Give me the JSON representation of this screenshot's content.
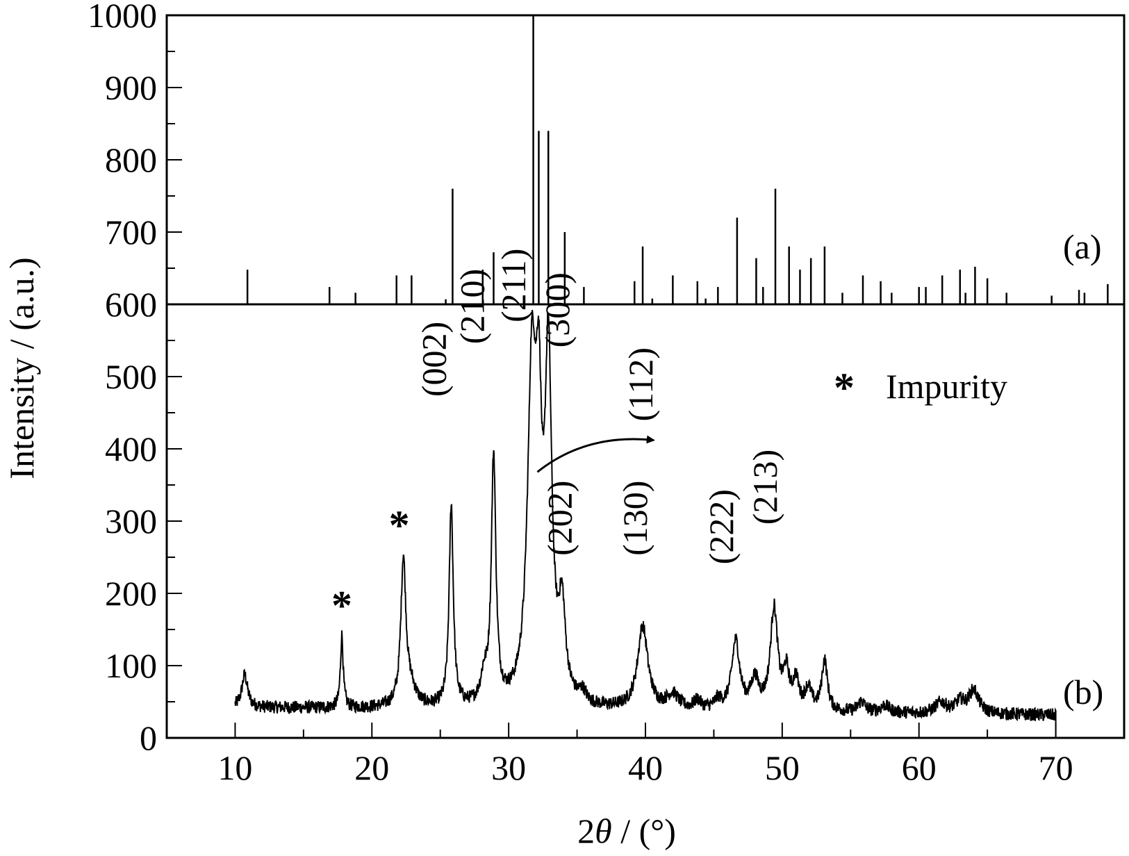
{
  "chart_data": {
    "type": "line",
    "xlabel_prefix": "2",
    "xlabel_theta": "θ",
    "xlabel_suffix": " / (°)",
    "ylabel": "Intensity / (a.u.)",
    "xlim": [
      5,
      75
    ],
    "ylim": [
      0,
      1000
    ],
    "xticks": [
      "10",
      "20",
      "30",
      "40",
      "50",
      "60",
      "70"
    ],
    "yticks": [
      "0",
      "100",
      "200",
      "300",
      "400",
      "500",
      "600",
      "700",
      "800",
      "900",
      "1000"
    ],
    "panel_a_label": "(a)",
    "panel_b_label": "(b)",
    "legend": {
      "marker": "*",
      "text": "Impurity"
    },
    "reference_pattern": {
      "baseline": 600,
      "lines": [
        [
          10.9,
          648
        ],
        [
          16.9,
          624
        ],
        [
          18.8,
          616
        ],
        [
          21.8,
          640
        ],
        [
          22.9,
          640
        ],
        [
          25.4,
          607
        ],
        [
          25.9,
          760
        ],
        [
          28.1,
          648
        ],
        [
          28.9,
          672
        ],
        [
          31.8,
          1000
        ],
        [
          32.2,
          840
        ],
        [
          32.9,
          840
        ],
        [
          34.1,
          700
        ],
        [
          35.5,
          624
        ],
        [
          39.2,
          632
        ],
        [
          39.8,
          680
        ],
        [
          40.5,
          608
        ],
        [
          42.0,
          640
        ],
        [
          43.8,
          632
        ],
        [
          44.4,
          608
        ],
        [
          45.3,
          624
        ],
        [
          46.7,
          720
        ],
        [
          48.1,
          664
        ],
        [
          48.6,
          624
        ],
        [
          49.5,
          760
        ],
        [
          50.5,
          680
        ],
        [
          51.3,
          648
        ],
        [
          52.1,
          664
        ],
        [
          53.1,
          680
        ],
        [
          54.4,
          616
        ],
        [
          55.9,
          640
        ],
        [
          57.2,
          632
        ],
        [
          58.0,
          616
        ],
        [
          60.0,
          624
        ],
        [
          60.5,
          624
        ],
        [
          61.7,
          640
        ],
        [
          63.0,
          648
        ],
        [
          63.4,
          616
        ],
        [
          64.1,
          652
        ],
        [
          65.0,
          636
        ],
        [
          66.4,
          616
        ],
        [
          69.7,
          612
        ],
        [
          71.7,
          620
        ],
        [
          72.1,
          616
        ],
        [
          73.8,
          628
        ]
      ]
    },
    "measured_pattern": {
      "x_range": [
        10,
        70
      ],
      "background": 42,
      "peaks": [
        [
          10.7,
          45,
          0.25
        ],
        [
          17.8,
          100,
          0.12
        ],
        [
          22.3,
          200,
          0.22
        ],
        [
          22.8,
          25,
          0.5
        ],
        [
          25.8,
          280,
          0.18
        ],
        [
          28.2,
          35,
          0.3
        ],
        [
          28.9,
          340,
          0.2
        ],
        [
          31.7,
          450,
          0.38
        ],
        [
          32.2,
          300,
          0.25
        ],
        [
          32.9,
          460,
          0.3
        ],
        [
          33.9,
          120,
          0.3
        ],
        [
          35.4,
          15,
          0.3
        ],
        [
          39.8,
          115,
          0.45
        ],
        [
          42.0,
          20,
          0.5
        ],
        [
          43.8,
          12,
          0.3
        ],
        [
          45.3,
          12,
          0.3
        ],
        [
          46.6,
          95,
          0.35
        ],
        [
          48.0,
          40,
          0.35
        ],
        [
          49.4,
          140,
          0.32
        ],
        [
          50.3,
          50,
          0.25
        ],
        [
          51.0,
          40,
          0.25
        ],
        [
          51.9,
          30,
          0.3
        ],
        [
          53.1,
          70,
          0.25
        ],
        [
          55.8,
          15,
          0.3
        ],
        [
          57.5,
          10,
          0.4
        ],
        [
          61.6,
          15,
          0.5
        ],
        [
          63.0,
          15,
          0.4
        ],
        [
          64.0,
          32,
          0.45
        ]
      ]
    },
    "hkl_labels": [
      {
        "text": "(002)",
        "x": 25.4,
        "y": 472
      },
      {
        "text": "(210)",
        "x": 28.2,
        "y": 545
      },
      {
        "text": "(211)",
        "x": 31.2,
        "y": 575
      },
      {
        "text": "(300)",
        "x": 34.4,
        "y": 540
      },
      {
        "text": "(112)",
        "x": 40.5,
        "y": 438
      },
      {
        "text": "(202)",
        "x": 34.6,
        "y": 252
      },
      {
        "text": "(130)",
        "x": 40.1,
        "y": 252
      },
      {
        "text": "(222)",
        "x": 46.4,
        "y": 240
      },
      {
        "text": "(213)",
        "x": 49.6,
        "y": 295
      }
    ],
    "impurity_marks": [
      {
        "x": 17.8,
        "y": 185
      },
      {
        "x": 22.0,
        "y": 296
      }
    ],
    "arrow": {
      "from": [
        32.1,
        368
      ],
      "to": [
        40.6,
        412
      ]
    }
  }
}
